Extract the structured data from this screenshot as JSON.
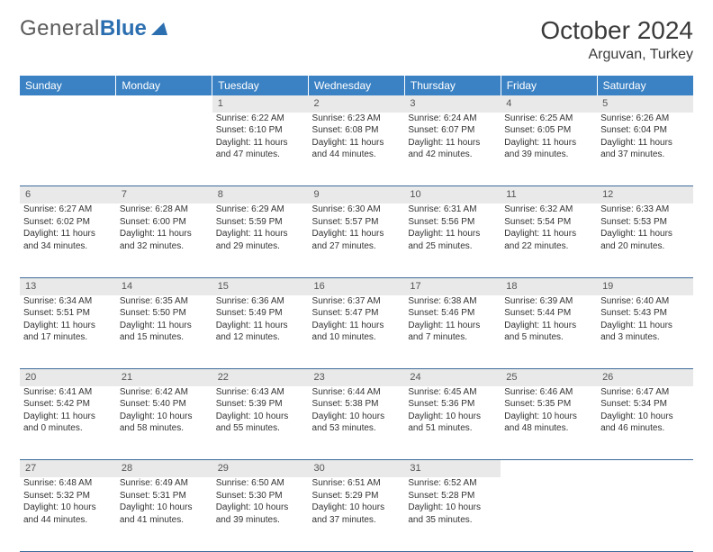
{
  "logo": {
    "general": "General",
    "blue": "Blue"
  },
  "title": "October 2024",
  "location": "Arguvan, Turkey",
  "colors": {
    "header_bg": "#3b82c4",
    "header_text": "#ffffff",
    "daynum_bg": "#e9e9e9",
    "border": "#3b6a9a",
    "logo_gray": "#5a5a5a",
    "logo_blue": "#2c6fb0"
  },
  "weekdays": [
    "Sunday",
    "Monday",
    "Tuesday",
    "Wednesday",
    "Thursday",
    "Friday",
    "Saturday"
  ],
  "weeks": [
    {
      "days": [
        null,
        null,
        {
          "n": "1",
          "sr": "6:22 AM",
          "ss": "6:10 PM",
          "dl": "11 hours and 47 minutes."
        },
        {
          "n": "2",
          "sr": "6:23 AM",
          "ss": "6:08 PM",
          "dl": "11 hours and 44 minutes."
        },
        {
          "n": "3",
          "sr": "6:24 AM",
          "ss": "6:07 PM",
          "dl": "11 hours and 42 minutes."
        },
        {
          "n": "4",
          "sr": "6:25 AM",
          "ss": "6:05 PM",
          "dl": "11 hours and 39 minutes."
        },
        {
          "n": "5",
          "sr": "6:26 AM",
          "ss": "6:04 PM",
          "dl": "11 hours and 37 minutes."
        }
      ]
    },
    {
      "days": [
        {
          "n": "6",
          "sr": "6:27 AM",
          "ss": "6:02 PM",
          "dl": "11 hours and 34 minutes."
        },
        {
          "n": "7",
          "sr": "6:28 AM",
          "ss": "6:00 PM",
          "dl": "11 hours and 32 minutes."
        },
        {
          "n": "8",
          "sr": "6:29 AM",
          "ss": "5:59 PM",
          "dl": "11 hours and 29 minutes."
        },
        {
          "n": "9",
          "sr": "6:30 AM",
          "ss": "5:57 PM",
          "dl": "11 hours and 27 minutes."
        },
        {
          "n": "10",
          "sr": "6:31 AM",
          "ss": "5:56 PM",
          "dl": "11 hours and 25 minutes."
        },
        {
          "n": "11",
          "sr": "6:32 AM",
          "ss": "5:54 PM",
          "dl": "11 hours and 22 minutes."
        },
        {
          "n": "12",
          "sr": "6:33 AM",
          "ss": "5:53 PM",
          "dl": "11 hours and 20 minutes."
        }
      ]
    },
    {
      "days": [
        {
          "n": "13",
          "sr": "6:34 AM",
          "ss": "5:51 PM",
          "dl": "11 hours and 17 minutes."
        },
        {
          "n": "14",
          "sr": "6:35 AM",
          "ss": "5:50 PM",
          "dl": "11 hours and 15 minutes."
        },
        {
          "n": "15",
          "sr": "6:36 AM",
          "ss": "5:49 PM",
          "dl": "11 hours and 12 minutes."
        },
        {
          "n": "16",
          "sr": "6:37 AM",
          "ss": "5:47 PM",
          "dl": "11 hours and 10 minutes."
        },
        {
          "n": "17",
          "sr": "6:38 AM",
          "ss": "5:46 PM",
          "dl": "11 hours and 7 minutes."
        },
        {
          "n": "18",
          "sr": "6:39 AM",
          "ss": "5:44 PM",
          "dl": "11 hours and 5 minutes."
        },
        {
          "n": "19",
          "sr": "6:40 AM",
          "ss": "5:43 PM",
          "dl": "11 hours and 3 minutes."
        }
      ]
    },
    {
      "days": [
        {
          "n": "20",
          "sr": "6:41 AM",
          "ss": "5:42 PM",
          "dl": "11 hours and 0 minutes."
        },
        {
          "n": "21",
          "sr": "6:42 AM",
          "ss": "5:40 PM",
          "dl": "10 hours and 58 minutes."
        },
        {
          "n": "22",
          "sr": "6:43 AM",
          "ss": "5:39 PM",
          "dl": "10 hours and 55 minutes."
        },
        {
          "n": "23",
          "sr": "6:44 AM",
          "ss": "5:38 PM",
          "dl": "10 hours and 53 minutes."
        },
        {
          "n": "24",
          "sr": "6:45 AM",
          "ss": "5:36 PM",
          "dl": "10 hours and 51 minutes."
        },
        {
          "n": "25",
          "sr": "6:46 AM",
          "ss": "5:35 PM",
          "dl": "10 hours and 48 minutes."
        },
        {
          "n": "26",
          "sr": "6:47 AM",
          "ss": "5:34 PM",
          "dl": "10 hours and 46 minutes."
        }
      ]
    },
    {
      "days": [
        {
          "n": "27",
          "sr": "6:48 AM",
          "ss": "5:32 PM",
          "dl": "10 hours and 44 minutes."
        },
        {
          "n": "28",
          "sr": "6:49 AM",
          "ss": "5:31 PM",
          "dl": "10 hours and 41 minutes."
        },
        {
          "n": "29",
          "sr": "6:50 AM",
          "ss": "5:30 PM",
          "dl": "10 hours and 39 minutes."
        },
        {
          "n": "30",
          "sr": "6:51 AM",
          "ss": "5:29 PM",
          "dl": "10 hours and 37 minutes."
        },
        {
          "n": "31",
          "sr": "6:52 AM",
          "ss": "5:28 PM",
          "dl": "10 hours and 35 minutes."
        },
        null,
        null
      ]
    }
  ],
  "labels": {
    "sunrise": "Sunrise:",
    "sunset": "Sunset:",
    "daylight": "Daylight:"
  }
}
